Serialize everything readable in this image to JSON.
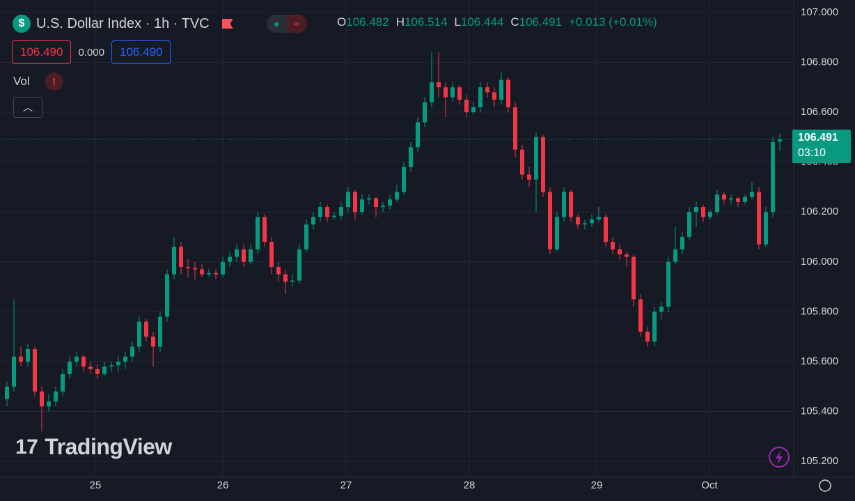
{
  "header": {
    "symbol": "U.S. Dollar Index · 1h · TVC",
    "change": "+0.013 (+0.01%)",
    "bid": "106.490",
    "spread": "0.000",
    "ask": "106.490",
    "volume": "Vol",
    "timer": "03:10",
    "brand": "TradingView",
    "o": "O",
    "h": "H",
    "l": "L",
    "c": "C"
  },
  "chart_data": {
    "type": "candlestick",
    "up_color": "#089981",
    "down_color": "#f23645",
    "grid": true,
    "xlim": [
      -1,
      113
    ],
    "ylim": [
      105.136,
      107.05
    ],
    "xticks": [
      {
        "value": 12.7,
        "label": "25"
      },
      {
        "value": 31,
        "label": "26"
      },
      {
        "value": 48.7,
        "label": "27"
      },
      {
        "value": 66.4,
        "label": "28"
      },
      {
        "value": 84.7,
        "label": "29"
      },
      {
        "value": 100.9,
        "label": "Oct"
      }
    ],
    "yticks": [
      {
        "value": 105.2,
        "label": "105.200"
      },
      {
        "value": 105.4,
        "label": "105.400"
      },
      {
        "value": 105.6,
        "label": "105.600"
      },
      {
        "value": 105.8,
        "label": "105.800"
      },
      {
        "value": 106,
        "label": "106.000"
      },
      {
        "value": 106.2,
        "label": "106.200"
      },
      {
        "value": 106.4,
        "label": "106.400"
      },
      {
        "value": 106.6,
        "label": "106.600"
      },
      {
        "value": 106.8,
        "label": "106.800"
      },
      {
        "value": 107,
        "label": "107.000"
      }
    ],
    "candles": [
      [
        105.45,
        105.52,
        105.42,
        105.5
      ],
      [
        105.5,
        105.85,
        105.48,
        105.62
      ],
      [
        105.62,
        105.66,
        105.58,
        105.6
      ],
      [
        105.6,
        105.67,
        105.58,
        105.65
      ],
      [
        105.65,
        105.66,
        105.46,
        105.48
      ],
      [
        105.48,
        105.5,
        105.32,
        105.42
      ],
      [
        105.42,
        105.47,
        105.4,
        105.44
      ],
      [
        105.44,
        105.5,
        105.42,
        105.48
      ],
      [
        105.48,
        105.57,
        105.46,
        105.55
      ],
      [
        105.55,
        105.62,
        105.53,
        105.6
      ],
      [
        105.6,
        105.64,
        105.58,
        105.62
      ],
      [
        105.62,
        105.63,
        105.56,
        105.58
      ],
      [
        105.58,
        105.6,
        105.55,
        105.57
      ],
      [
        105.57,
        105.59,
        105.53,
        105.55
      ],
      [
        105.55,
        105.6,
        105.54,
        105.58
      ],
      [
        105.58,
        105.6,
        105.56,
        105.585
      ],
      [
        105.585,
        105.62,
        105.56,
        105.6
      ],
      [
        105.6,
        105.64,
        105.57,
        105.62
      ],
      [
        105.62,
        105.68,
        105.6,
        105.66
      ],
      [
        105.66,
        105.78,
        105.64,
        105.76
      ],
      [
        105.76,
        105.77,
        105.68,
        105.7
      ],
      [
        105.7,
        105.72,
        105.58,
        105.66
      ],
      [
        105.66,
        105.8,
        105.64,
        105.78
      ],
      [
        105.78,
        105.97,
        105.76,
        105.95
      ],
      [
        105.95,
        106.1,
        105.93,
        106.06
      ],
      [
        106.06,
        106.08,
        105.95,
        105.98
      ],
      [
        105.98,
        106.01,
        105.94,
        105.975
      ],
      [
        105.975,
        106.0,
        105.93,
        105.97
      ],
      [
        105.97,
        105.99,
        105.94,
        105.95
      ],
      [
        105.95,
        105.97,
        105.94,
        105.955
      ],
      [
        105.955,
        105.97,
        105.93,
        105.95
      ],
      [
        105.95,
        106.02,
        105.94,
        106.0
      ],
      [
        106.0,
        106.04,
        105.98,
        106.02
      ],
      [
        106.02,
        106.07,
        106.0,
        106.05
      ],
      [
        106.05,
        106.07,
        105.98,
        106.0
      ],
      [
        106.0,
        106.07,
        105.99,
        106.05
      ],
      [
        106.05,
        106.2,
        106.03,
        106.18
      ],
      [
        106.18,
        106.19,
        106.06,
        106.08
      ],
      [
        106.08,
        106.1,
        105.95,
        105.98
      ],
      [
        105.98,
        106.0,
        105.92,
        105.95
      ],
      [
        105.95,
        105.97,
        105.87,
        105.92
      ],
      [
        105.92,
        105.95,
        105.9,
        105.925
      ],
      [
        105.925,
        106.07,
        105.91,
        106.05
      ],
      [
        106.05,
        106.17,
        106.04,
        106.15
      ],
      [
        106.15,
        106.2,
        106.13,
        106.18
      ],
      [
        106.18,
        106.24,
        106.16,
        106.22
      ],
      [
        106.22,
        106.23,
        106.16,
        106.18
      ],
      [
        106.18,
        106.2,
        106.17,
        106.185
      ],
      [
        106.185,
        106.24,
        106.17,
        106.22
      ],
      [
        106.22,
        106.3,
        106.2,
        106.28
      ],
      [
        106.28,
        106.29,
        106.17,
        106.2
      ],
      [
        106.2,
        106.27,
        106.19,
        106.25
      ],
      [
        106.25,
        106.27,
        106.23,
        106.255
      ],
      [
        106.255,
        106.26,
        106.18,
        106.22
      ],
      [
        106.22,
        106.24,
        106.2,
        106.225
      ],
      [
        106.225,
        106.27,
        106.21,
        106.25
      ],
      [
        106.25,
        106.31,
        106.24,
        106.28
      ],
      [
        106.28,
        106.4,
        106.27,
        106.38
      ],
      [
        106.38,
        106.48,
        106.36,
        106.46
      ],
      [
        106.46,
        106.58,
        106.44,
        106.56
      ],
      [
        106.56,
        106.66,
        106.54,
        106.64
      ],
      [
        106.64,
        106.84,
        106.62,
        106.72
      ],
      [
        106.72,
        106.84,
        106.66,
        106.7
      ],
      [
        106.7,
        106.72,
        106.58,
        106.66
      ],
      [
        106.66,
        106.72,
        106.64,
        106.7
      ],
      [
        106.7,
        106.71,
        106.63,
        106.65
      ],
      [
        106.65,
        106.67,
        106.58,
        106.6
      ],
      [
        106.6,
        106.64,
        106.59,
        106.62
      ],
      [
        106.62,
        106.72,
        106.6,
        106.7
      ],
      [
        106.7,
        106.72,
        106.66,
        106.68
      ],
      [
        106.68,
        106.7,
        106.62,
        106.65
      ],
      [
        106.65,
        106.76,
        106.63,
        106.73
      ],
      [
        106.73,
        106.74,
        106.6,
        106.62
      ],
      [
        106.62,
        106.64,
        106.42,
        106.45
      ],
      [
        106.45,
        106.47,
        106.33,
        106.35
      ],
      [
        106.35,
        106.38,
        106.3,
        106.33
      ],
      [
        106.33,
        106.52,
        106.2,
        106.5
      ],
      [
        106.5,
        106.51,
        106.26,
        106.28
      ],
      [
        106.28,
        106.3,
        106.03,
        106.05
      ],
      [
        106.05,
        106.2,
        106.04,
        106.18
      ],
      [
        106.18,
        106.3,
        106.16,
        106.28
      ],
      [
        106.28,
        106.29,
        106.16,
        106.18
      ],
      [
        106.18,
        106.19,
        106.13,
        106.15
      ],
      [
        106.15,
        106.17,
        106.13,
        106.155
      ],
      [
        106.155,
        106.19,
        106.14,
        106.17
      ],
      [
        106.17,
        106.22,
        106.16,
        106.18
      ],
      [
        106.18,
        106.19,
        106.06,
        106.08
      ],
      [
        106.08,
        106.1,
        106.03,
        106.05
      ],
      [
        106.05,
        106.07,
        106.01,
        106.03
      ],
      [
        106.03,
        106.04,
        105.98,
        106.02
      ],
      [
        106.02,
        106.03,
        105.82,
        105.85
      ],
      [
        105.85,
        105.87,
        105.7,
        105.72
      ],
      [
        105.72,
        105.74,
        105.66,
        105.68
      ],
      [
        105.68,
        105.82,
        105.66,
        105.8
      ],
      [
        105.8,
        105.84,
        105.77,
        105.82
      ],
      [
        105.82,
        106.02,
        105.8,
        106.0
      ],
      [
        106.0,
        106.14,
        105.99,
        106.05
      ],
      [
        106.05,
        106.12,
        106.03,
        106.1
      ],
      [
        106.1,
        106.22,
        106.09,
        106.2
      ],
      [
        106.2,
        106.24,
        106.14,
        106.22
      ],
      [
        106.22,
        106.23,
        106.16,
        106.18
      ],
      [
        106.18,
        106.21,
        106.17,
        106.2
      ],
      [
        106.2,
        106.29,
        106.19,
        106.27
      ],
      [
        106.27,
        106.28,
        106.23,
        106.25
      ],
      [
        106.25,
        106.27,
        106.23,
        106.255
      ],
      [
        106.255,
        106.26,
        106.22,
        106.24
      ],
      [
        106.24,
        106.27,
        106.23,
        106.26
      ],
      [
        106.26,
        106.32,
        106.25,
        106.28
      ],
      [
        106.28,
        106.3,
        106.05,
        106.07
      ],
      [
        106.07,
        106.22,
        106.06,
        106.2
      ],
      [
        106.2,
        106.5,
        106.18,
        106.48
      ],
      [
        106.482,
        106.514,
        106.444,
        106.491
      ]
    ]
  }
}
